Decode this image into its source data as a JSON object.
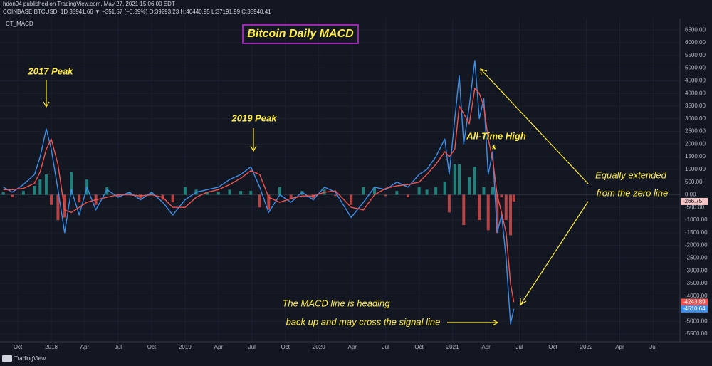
{
  "chart_data": {
    "type": "line",
    "header": "hdon94 published on TradingView.com, May 27, 2021 15:06:00 EDT",
    "symbol_line": "COINBASE:BTCUSD, 1D 38941.66 ▼ −351.57 (−0.89%) O:39293.23 H:40440.95 L:37191.99 C:38940.41",
    "indicator": "CT_MACD",
    "title": "Bitcoin Daily MACD",
    "annotations": [
      "2017 Peak",
      "2019 Peak",
      "All-Time High",
      "*",
      "Equally extended",
      "from the zero line",
      "The MACD line is heading",
      "back up and may cross the signal line"
    ],
    "footer": "TradingView",
    "x": [
      -1.3,
      -0.5,
      0.5,
      1.5,
      2.0,
      2.55,
      3.0,
      3.6,
      4.2,
      4.8,
      5.5,
      6.2,
      7.0,
      8.0,
      9.0,
      10.0,
      11.0,
      12.0,
      13.0,
      13.9,
      15.0,
      16.0,
      17.0,
      18.0,
      19.0,
      20.0,
      20.9,
      21.7,
      22.5,
      23.5,
      24.5,
      25.5,
      26.5,
      27.5,
      28.5,
      29.9,
      31.0,
      32.0,
      33.0,
      34.0,
      35.0,
      36.0,
      36.7,
      37.5,
      38.3,
      38.7,
      39.2,
      39.6,
      40.0,
      40.5,
      41.0,
      41.4,
      41.8,
      42.2,
      42.6,
      43.0,
      43.4,
      43.8,
      44.2,
      44.5
    ],
    "series": [
      {
        "name": "MACD",
        "color": "#3d8ee8",
        "values": [
          300,
          100,
          400,
          800,
          1500,
          2600,
          1800,
          200,
          -1500,
          200,
          -800,
          300,
          -600,
          200,
          -100,
          100,
          -200,
          100,
          -300,
          -800,
          -200,
          100,
          200,
          300,
          600,
          800,
          1100,
          300,
          -700,
          0,
          -300,
          100,
          -200,
          300,
          100,
          -900,
          -300,
          300,
          200,
          500,
          300,
          800,
          1000,
          1500,
          2200,
          800,
          3000,
          4700,
          2000,
          3500,
          5300,
          3000,
          3800,
          800,
          1700,
          -1500,
          -800,
          -2500,
          -5100,
          -4510.64
        ]
      },
      {
        "name": "Signal",
        "color": "#ef5350",
        "values": [
          200,
          200,
          250,
          450,
          900,
          1800,
          2200,
          1200,
          -600,
          -700,
          -500,
          -300,
          -200,
          -100,
          0,
          0,
          -50,
          0,
          -100,
          -500,
          -500,
          -100,
          100,
          200,
          400,
          650,
          950,
          800,
          -100,
          -300,
          -150,
          -50,
          -50,
          100,
          150,
          -500,
          -600,
          0,
          250,
          350,
          400,
          500,
          800,
          1200,
          1700,
          1500,
          1800,
          3500,
          3200,
          2800,
          4200,
          4000,
          3500,
          2200,
          1400,
          0,
          -700,
          -1500,
          -3500,
          -4243.89
        ]
      }
    ],
    "histogram": {
      "name": "Histogram",
      "positive_color": "#26a69a",
      "negative_color": "#ef5350",
      "values": [
        100,
        -100,
        150,
        350,
        600,
        800,
        -400,
        -1000,
        -900,
        900,
        -300,
        600,
        -400,
        300,
        -100,
        100,
        -150,
        100,
        -200,
        -300,
        300,
        200,
        100,
        100,
        200,
        150,
        150,
        -500,
        -600,
        300,
        -150,
        150,
        -150,
        200,
        -50,
        -400,
        300,
        300,
        -50,
        150,
        -100,
        300,
        200,
        300,
        500,
        -700,
        1200,
        1200,
        -1200,
        700,
        1100,
        -1000,
        300,
        -1400,
        300,
        -1500,
        -100,
        -1000,
        -1600,
        -266.75
      ]
    },
    "xlim": [
      -1.6,
      59.4
    ],
    "xticks": [
      {
        "value": 0,
        "label": "Oct"
      },
      {
        "value": 3,
        "label": "2018"
      },
      {
        "value": 6,
        "label": "Apr"
      },
      {
        "value": 9,
        "label": "Jul"
      },
      {
        "value": 12,
        "label": "Oct"
      },
      {
        "value": 15,
        "label": "2019"
      },
      {
        "value": 18,
        "label": "Apr"
      },
      {
        "value": 21,
        "label": "Jul"
      },
      {
        "value": 24,
        "label": "Oct"
      },
      {
        "value": 27,
        "label": "2020"
      },
      {
        "value": 30,
        "label": "Apr"
      },
      {
        "value": 33,
        "label": "Jul"
      },
      {
        "value": 36,
        "label": "Oct"
      },
      {
        "value": 39,
        "label": "2021"
      },
      {
        "value": 42,
        "label": "Apr"
      },
      {
        "value": 45,
        "label": "Jul"
      },
      {
        "value": 48,
        "label": "Oct"
      },
      {
        "value": 51,
        "label": "2022"
      },
      {
        "value": 54,
        "label": "Apr"
      },
      {
        "value": 57,
        "label": "Jul"
      }
    ],
    "ylim": [
      -5750,
      6900
    ],
    "yticks": [
      {
        "value": 6500,
        "label": "6500.00"
      },
      {
        "value": 6000,
        "label": "6000.00"
      },
      {
        "value": 5500,
        "label": "5500.00"
      },
      {
        "value": 5000,
        "label": "5000.00"
      },
      {
        "value": 4500,
        "label": "4500.00"
      },
      {
        "value": 4000,
        "label": "4000.00"
      },
      {
        "value": 3500,
        "label": "3500.00"
      },
      {
        "value": 3000,
        "label": "3000.00"
      },
      {
        "value": 2500,
        "label": "2500.00"
      },
      {
        "value": 2000,
        "label": "2000.00"
      },
      {
        "value": 1500,
        "label": "1500.00"
      },
      {
        "value": 1000,
        "label": "1000.00"
      },
      {
        "value": 500,
        "label": "500.00"
      },
      {
        "value": 0,
        "label": "0.00"
      },
      {
        "value": -500,
        "label": "-500.00"
      },
      {
        "value": -1000,
        "label": "-1000.00"
      },
      {
        "value": -1500,
        "label": "-1500.00"
      },
      {
        "value": -2000,
        "label": "-2000.00"
      },
      {
        "value": -2500,
        "label": "-2500.00"
      },
      {
        "value": -3000,
        "label": "-3000.00"
      },
      {
        "value": -3500,
        "label": "-3500.00"
      },
      {
        "value": -4000,
        "label": "-4000.00"
      },
      {
        "value": -4500,
        "label": "-4500.00"
      },
      {
        "value": -5000,
        "label": "-5000.00"
      },
      {
        "value": -5500,
        "label": "-5500.00"
      }
    ],
    "grid": true
  }
}
